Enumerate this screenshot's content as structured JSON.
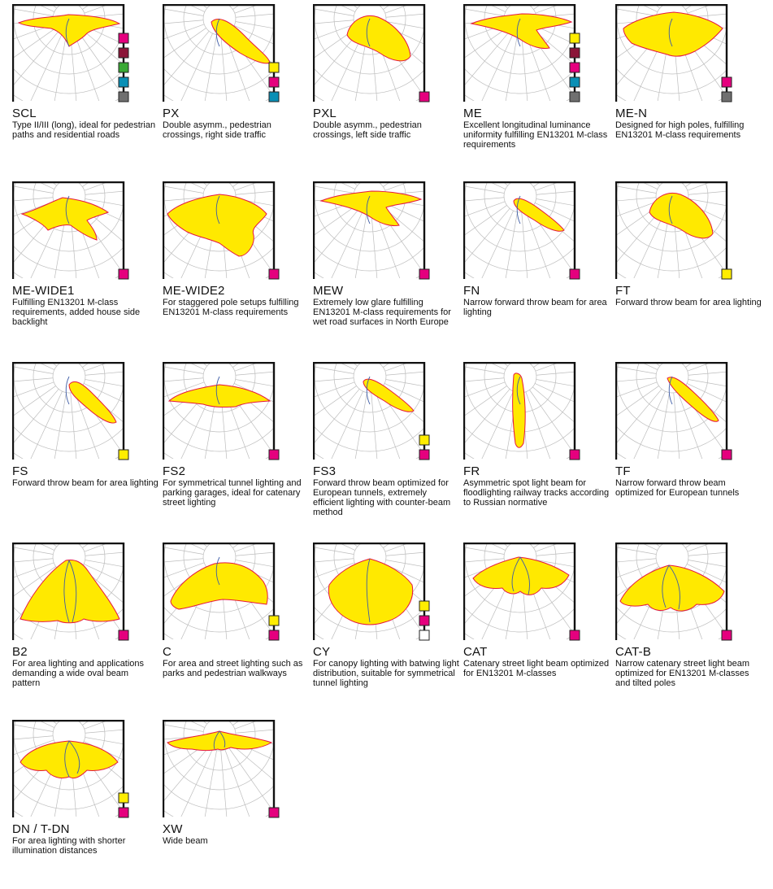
{
  "colors": {
    "beam_fill": "#FFE900",
    "beam_outline_red": "#E5173F",
    "beam_outline_blue": "#3E5CA6",
    "frame": "#111111",
    "grid": "#BDBDBD",
    "swatch_yellow": "#FFED00",
    "swatch_magenta": "#E5007E",
    "swatch_darkred": "#8B1538",
    "swatch_green": "#3AA935",
    "swatch_blue": "#0A8FB5",
    "swatch_gray": "#707070",
    "swatch_white": "#FFFFFF"
  },
  "optics": [
    {
      "code": "SCL",
      "description": "Type II/III (long), ideal for pedestrian paths and residential roads",
      "shape": "wide_flat",
      "swatches": [
        "magenta",
        "darkred",
        "green",
        "blue",
        "gray"
      ]
    },
    {
      "code": "PX",
      "description": "Double asymm., pedestrian crossings, right side traffic",
      "shape": "diag_long",
      "swatches": [
        "yellow",
        "magenta",
        "blue"
      ]
    },
    {
      "code": "PXL",
      "description": "Double asymm., pedestrian crossings, left side traffic",
      "shape": "diag_fat",
      "swatches": [
        "magenta"
      ]
    },
    {
      "code": "ME",
      "description": "Excellent longitudinal luminance uniformity fulfilling EN13201 M-class requirements",
      "shape": "wide_tail",
      "swatches": [
        "yellow",
        "darkred",
        "magenta",
        "blue",
        "gray"
      ]
    },
    {
      "code": "ME-N",
      "description": "Designed for high poles, fulfilling EN13201 M-class requirements",
      "shape": "wide_deep",
      "swatches": [
        "magenta",
        "gray"
      ]
    },
    {
      "code": "ME-WIDE1",
      "description": "Fulfilling EN13201 M-class requirements, added house side backlight",
      "shape": "wide_star",
      "swatches": [
        "magenta"
      ]
    },
    {
      "code": "ME-WIDE2",
      "description": "For staggered pole setups fulfilling EN13201 M-class requirements",
      "shape": "wide_big",
      "swatches": [
        "magenta"
      ]
    },
    {
      "code": "MEW",
      "description": "Extremely low glare fulfilling EN13201 M-class requirements for wet road surfaces in North Europe",
      "shape": "wide_tail",
      "swatches": [
        "magenta"
      ]
    },
    {
      "code": "FN",
      "description": "Narrow forward throw beam for area lighting",
      "shape": "diag_thin",
      "swatches": [
        "magenta"
      ]
    },
    {
      "code": "FT",
      "description": "Forward throw beam for area lighting",
      "shape": "diag_fat",
      "swatches": [
        "yellow"
      ]
    },
    {
      "code": "FS",
      "description": "Forward throw beam for area lighting",
      "shape": "diag_mid",
      "swatches": [
        "yellow"
      ]
    },
    {
      "code": "FS2",
      "description": "For symmetrical tunnel lighting and parking garages, ideal for catenary street lighting",
      "shape": "wide_flat2",
      "swatches": [
        "magenta"
      ]
    },
    {
      "code": "FS3",
      "description": "Forward throw beam optimized for European tunnels, extremely efficient lighting with counter-beam method",
      "shape": "diag_thin",
      "swatches": [
        "yellow",
        "magenta"
      ]
    },
    {
      "code": "FR",
      "description": "Asymmetric spot light beam for floodlighting railway tracks according to Russian normative",
      "shape": "vertical",
      "swatches": [
        "magenta"
      ]
    },
    {
      "code": "TF",
      "description": "Narrow forward throw beam optimized for European tunnels",
      "shape": "diag_long2",
      "swatches": [
        "magenta"
      ]
    },
    {
      "code": "B2",
      "description": "For area lighting and applications demanding a wide oval beam pattern",
      "shape": "bat",
      "swatches": [
        "magenta"
      ]
    },
    {
      "code": "C",
      "description": "For area and street lighting such as parks and pedestrian walkways",
      "shape": "boomerang",
      "swatches": [
        "yellow",
        "magenta"
      ]
    },
    {
      "code": "CY",
      "description": "For canopy lighting with batwing light distribution, suitable for symmetrical tunnel lighting",
      "shape": "round",
      "swatches": [
        "yellow",
        "magenta",
        "white"
      ]
    },
    {
      "code": "CAT",
      "description": "Catenary street light beam optimized for EN13201 M-classes",
      "shape": "cat",
      "swatches": [
        "magenta"
      ]
    },
    {
      "code": "CAT-B",
      "description": "Narrow catenary street light beam optimized for EN13201 M-classes and tilted poles",
      "shape": "cat_b",
      "swatches": [
        "magenta"
      ]
    },
    {
      "code": "DN / T-DN",
      "description": "For area lighting with shorter illumination distances",
      "shape": "dn",
      "swatches": [
        "yellow",
        "magenta"
      ]
    },
    {
      "code": "XW",
      "description": "Wide beam",
      "shape": "xw",
      "swatches": [
        "magenta"
      ]
    }
  ]
}
